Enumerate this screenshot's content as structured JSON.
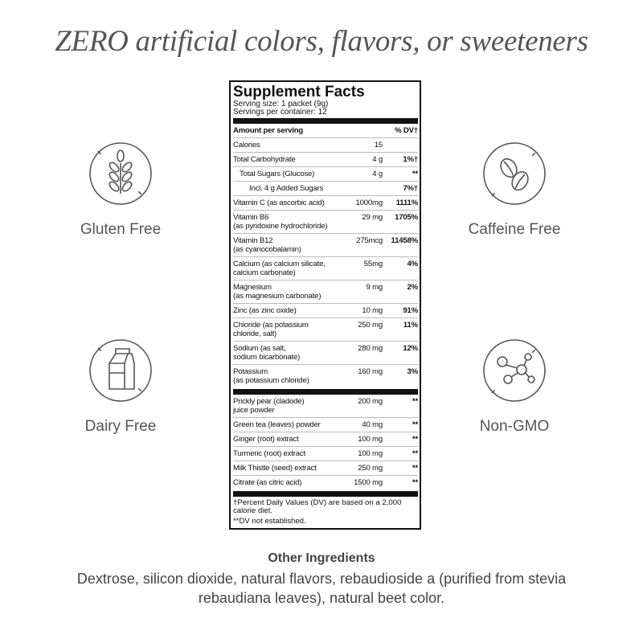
{
  "headline": "ZERO artificial colors, flavors, or sweeteners",
  "badges": {
    "gluten": "Gluten Free",
    "caffeine": "Caffeine Free",
    "dairy": "Dairy Free",
    "gmo": "Non-GMO"
  },
  "facts": {
    "title": "Supplement Facts",
    "serving_size": "Serving size: 1 packet (9g)",
    "servings_per_container": "Servings per container: 12",
    "header": {
      "name": "Amount per serving",
      "dv": "% DV†"
    },
    "rows": [
      {
        "name": "Calories",
        "amount": "15",
        "dv": "",
        "indent": 0
      },
      {
        "name": "Total Carbohydrate",
        "amount": "4 g",
        "dv": "1%†",
        "indent": 0
      },
      {
        "name": "Total Sugars (Glucose)",
        "amount": "4 g",
        "dv": "**",
        "indent": 1
      },
      {
        "name": "Incl. 4 g Added Sugars",
        "amount": "",
        "dv": "7%†",
        "indent": 2
      },
      {
        "name": "Vitamin C (as ascorbic acid)",
        "amount": "1000mg",
        "dv": "1111%",
        "indent": 0
      },
      {
        "name": "Vitamin B6\n(as pyridoxine hydrochloride)",
        "amount": "29 mg",
        "dv": "1705%",
        "indent": 0
      },
      {
        "name": "Vitamin B12\n(as cyanocobalamin)",
        "amount": "275mcg",
        "dv": "11458%",
        "indent": 0
      },
      {
        "name": "Calcium (as calcium silicate,\ncalcium carbonate)",
        "amount": "55mg",
        "dv": "4%",
        "indent": 0
      },
      {
        "name": "Magnesium\n(as magnesium carbonate)",
        "amount": "9 mg",
        "dv": "2%",
        "indent": 0
      },
      {
        "name": "Zinc (as zinc oxide)",
        "amount": "10 mg",
        "dv": "91%",
        "indent": 0
      },
      {
        "name": "Chloride (as potassium\nchloride, salt)",
        "amount": "250 mg",
        "dv": "11%",
        "indent": 0
      },
      {
        "name": "Sodium (as salt,\nsodium bicarbonate)",
        "amount": "280 mg",
        "dv": "12%",
        "indent": 0
      },
      {
        "name": "Potassium\n(as potassium chloride)",
        "amount": "160 mg",
        "dv": "3%",
        "indent": 0
      }
    ],
    "other_rows": [
      {
        "name": "Prickly pear (cladode)\njuice powder",
        "amount": "200 mg",
        "dv": "**"
      },
      {
        "name": "Green tea (leaves) powder",
        "amount": "40 mg",
        "dv": "**"
      },
      {
        "name": "Ginger (root) extract",
        "amount": "100 mg",
        "dv": "**"
      },
      {
        "name": "Turmeric (root) extract",
        "amount": "100 mg",
        "dv": "**"
      },
      {
        "name": "Milk Thistle (seed) extract",
        "amount": "250 mg",
        "dv": "**"
      },
      {
        "name": "Citrate (as citric acid)",
        "amount": "1500 mg",
        "dv": "**"
      }
    ],
    "footnote_1": "†Percent Daily Values (DV) are based on a 2,000 calorie diet.",
    "footnote_2": "**DV not established."
  },
  "other_ingredients": {
    "heading": "Other Ingredients",
    "text": "Dextrose, silicon dioxide, natural flavors, rebaudioside a (purified from stevia rebaudiana leaves), natural beet color."
  },
  "colors": {
    "icon": "#555555",
    "label_border": "#111111"
  }
}
